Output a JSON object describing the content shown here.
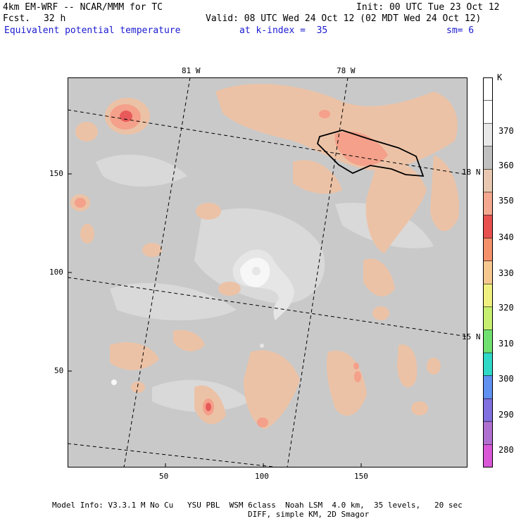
{
  "header": {
    "model_line": "4km EM-WRF -- NCAR/MMM for TC",
    "fcst_label": "Fcst.",
    "fcst_value": "32 h",
    "init": "Init: 00 UTC Tue 23 Oct 12",
    "valid": "Valid: 08 UTC Wed 24 Oct 12 (02 MDT Wed 24 Oct 12)",
    "field": "Equivalent potential temperature",
    "kindex": "at k-index =  35",
    "sm": "sm= 6"
  },
  "map": {
    "lon_labels": [
      "81 W",
      "78 W"
    ],
    "lat_labels": [
      "18 N",
      "15 N"
    ],
    "x_ticks": [
      "50",
      "100",
      "150"
    ],
    "y_ticks": [
      "150",
      "100",
      "50"
    ],
    "colors": {
      "background": "#c9c9c9",
      "light_gray": "#e0e0e0",
      "white_core": "#fafafa",
      "tan": "#ecc2a6",
      "salmon": "#f4a08a",
      "red": "#e85a5a"
    }
  },
  "colorbar": {
    "unit": "K",
    "labels": [
      "370",
      "360",
      "350",
      "340",
      "330",
      "320",
      "310",
      "300",
      "290",
      "280"
    ],
    "colors": [
      "#ffffff",
      "#ffffff",
      "#e8e8e8",
      "#c0c0c0",
      "#e8c8b0",
      "#f4a890",
      "#e85050",
      "#f4906a",
      "#f6c890",
      "#f0f080",
      "#c8f070",
      "#70e070",
      "#30d8c8",
      "#6090f0",
      "#8070e0",
      "#b070d0",
      "#d858d8"
    ]
  },
  "footer": {
    "line1": "Model Info: V3.3.1 M No Cu   YSU PBL  WSM 6class  Noah LSM  4.0 km,  35 levels,   20 sec",
    "line2": "DIFF, simple KM, 2D Smagor"
  }
}
